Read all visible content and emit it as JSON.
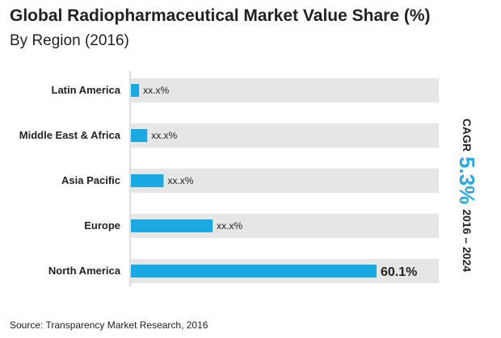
{
  "header": {
    "title": "Global Radiopharmaceutical Market Value Share (%)",
    "subtitle": "By Region (2016)"
  },
  "cagr": {
    "label": "CAGR",
    "value": "5.3%",
    "period": "2016 – 2024"
  },
  "footer": {
    "source": "Source: Transparency Market Research, 2016"
  },
  "colors": {
    "bar": "#1ba9e1",
    "track": "#e6e6e6",
    "cagr_accent": "#29a9e1"
  },
  "chart_data": {
    "type": "bar",
    "orientation": "horizontal",
    "categories": [
      "Latin America",
      "Middle East & Africa",
      "Asia Pacific",
      "Europe",
      "North America"
    ],
    "values": [
      2.0,
      4.0,
      8.0,
      20.0,
      60.1
    ],
    "value_labels": [
      "xx.x%",
      "xx.x%",
      "xx.x%",
      "xx.x%",
      "60.1%"
    ],
    "xlim": [
      0,
      60.1
    ],
    "title": "Global Radiopharmaceutical Market Value Share (%)",
    "subtitle": "By Region (2016)",
    "grid": false,
    "legend": "none"
  }
}
